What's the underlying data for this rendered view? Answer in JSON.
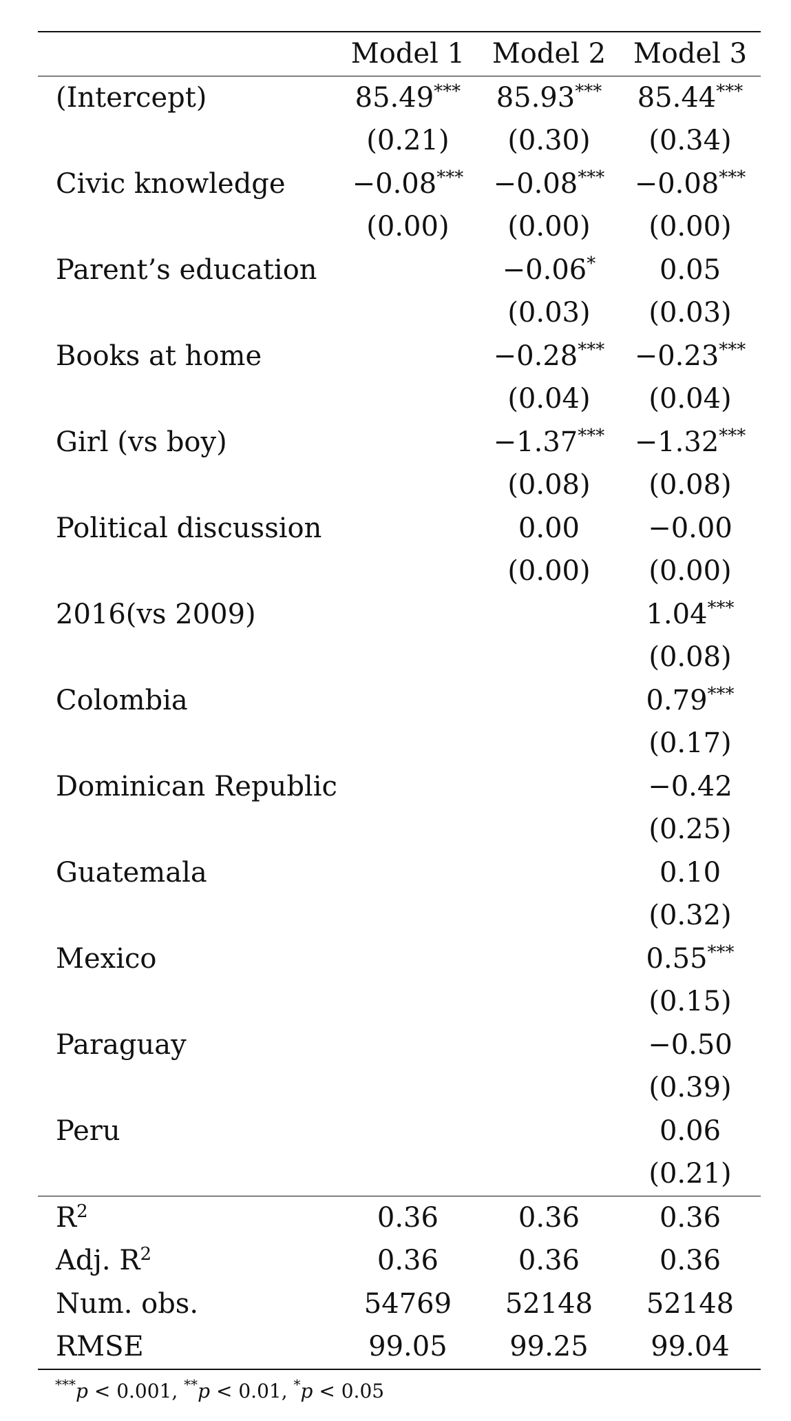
{
  "header": {
    "corner": "",
    "models": [
      "Model 1",
      "Model 2",
      "Model 3"
    ]
  },
  "coefficients": [
    {
      "label": "(Intercept)",
      "est": [
        [
          "85.49",
          "***"
        ],
        [
          "85.93",
          "***"
        ],
        [
          "85.44",
          "***"
        ]
      ],
      "se": [
        "(0.21)",
        "(0.30)",
        "(0.34)"
      ]
    },
    {
      "label": "Civic knowledge",
      "est": [
        [
          "−0.08",
          "***"
        ],
        [
          "−0.08",
          "***"
        ],
        [
          "−0.08",
          "***"
        ]
      ],
      "se": [
        "(0.00)",
        "(0.00)",
        "(0.00)"
      ]
    },
    {
      "label": "Parent’s education",
      "est": [
        [
          "",
          ""
        ],
        [
          "−0.06",
          "*"
        ],
        [
          "0.05",
          ""
        ]
      ],
      "se": [
        "",
        "(0.03)",
        "(0.03)"
      ]
    },
    {
      "label": "Books at home",
      "est": [
        [
          "",
          ""
        ],
        [
          "−0.28",
          "***"
        ],
        [
          "−0.23",
          "***"
        ]
      ],
      "se": [
        "",
        "(0.04)",
        "(0.04)"
      ]
    },
    {
      "label": "Girl (vs boy)",
      "est": [
        [
          "",
          ""
        ],
        [
          "−1.37",
          "***"
        ],
        [
          "−1.32",
          "***"
        ]
      ],
      "se": [
        "",
        "(0.08)",
        "(0.08)"
      ]
    },
    {
      "label": "Political discussion",
      "est": [
        [
          "",
          ""
        ],
        [
          "0.00",
          ""
        ],
        [
          "−0.00",
          ""
        ]
      ],
      "se": [
        "",
        "(0.00)",
        "(0.00)"
      ]
    },
    {
      "label": "2016(vs 2009)",
      "est": [
        [
          "",
          ""
        ],
        [
          "",
          ""
        ],
        [
          "1.04",
          "***"
        ]
      ],
      "se": [
        "",
        "",
        "(0.08)"
      ]
    },
    {
      "label": "Colombia",
      "est": [
        [
          "",
          ""
        ],
        [
          "",
          ""
        ],
        [
          "0.79",
          "***"
        ]
      ],
      "se": [
        "",
        "",
        "(0.17)"
      ]
    },
    {
      "label": "Dominican Republic",
      "est": [
        [
          "",
          ""
        ],
        [
          "",
          ""
        ],
        [
          "−0.42",
          ""
        ]
      ],
      "se": [
        "",
        "",
        "(0.25)"
      ]
    },
    {
      "label": "Guatemala",
      "est": [
        [
          "",
          ""
        ],
        [
          "",
          ""
        ],
        [
          "0.10",
          ""
        ]
      ],
      "se": [
        "",
        "",
        "(0.32)"
      ]
    },
    {
      "label": "Mexico",
      "est": [
        [
          "",
          ""
        ],
        [
          "",
          ""
        ],
        [
          "0.55",
          "***"
        ]
      ],
      "se": [
        "",
        "",
        "(0.15)"
      ]
    },
    {
      "label": "Paraguay",
      "est": [
        [
          "",
          ""
        ],
        [
          "",
          ""
        ],
        [
          "−0.50",
          ""
        ]
      ],
      "se": [
        "",
        "",
        "(0.39)"
      ]
    },
    {
      "label": "Peru",
      "est": [
        [
          "",
          ""
        ],
        [
          "",
          ""
        ],
        [
          "0.06",
          ""
        ]
      ],
      "se": [
        "",
        "",
        "(0.21)"
      ]
    }
  ],
  "gof": [
    {
      "label": "R",
      "sup": "2",
      "values": [
        "0.36",
        "0.36",
        "0.36"
      ]
    },
    {
      "label": "Adj. R",
      "sup": "2",
      "values": [
        "0.36",
        "0.36",
        "0.36"
      ]
    },
    {
      "label": "Num. obs.",
      "sup": "",
      "values": [
        "54769",
        "52148",
        "52148"
      ]
    },
    {
      "label": "RMSE",
      "sup": "",
      "values": [
        "99.05",
        "99.25",
        "99.04"
      ]
    }
  ],
  "footnote": [
    {
      "stars": "***",
      "p": "p",
      "rel": " < 0.001"
    },
    {
      "stars": "**",
      "p": "p",
      "rel": " < 0.01"
    },
    {
      "stars": "*",
      "p": "p",
      "rel": " < 0.05"
    }
  ],
  "footnote_sep": ", "
}
